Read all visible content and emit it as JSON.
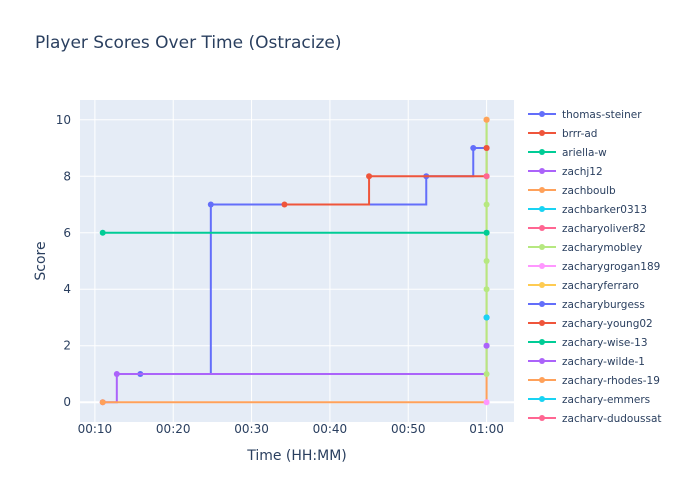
{
  "chart_data": {
    "type": "line",
    "line_shape": "step",
    "title": "Player Scores Over Time (Ostracize)",
    "xlabel": "Time (HH:MM)",
    "ylabel": "Score",
    "x_ticks": [
      "00:10",
      "00:20",
      "00:30",
      "00:40",
      "00:50",
      "01:00"
    ],
    "x_tick_minutes": [
      10,
      20,
      30,
      40,
      50,
      60
    ],
    "xlim_minutes": [
      8.1,
      63.5
    ],
    "y_ticks": [
      0,
      2,
      4,
      6,
      8,
      10
    ],
    "ylim": [
      -0.7,
      10.7
    ],
    "grid": true,
    "legend_position": "right",
    "series": [
      {
        "name": "thomas-steiner",
        "color": "#636efa",
        "x": [
          15.8,
          24.8,
          52.3,
          58.3,
          60
        ],
        "y": [
          1,
          7,
          8,
          9,
          9
        ]
      },
      {
        "name": "brrr-ad",
        "color": "#EF553B",
        "x": [
          34.2,
          45,
          60
        ],
        "y": [
          7,
          8,
          9
        ]
      },
      {
        "name": "ariella-w",
        "color": "#00cc96",
        "x": [
          11,
          60
        ],
        "y": [
          6,
          6
        ]
      },
      {
        "name": "zachj12",
        "color": "#ab63fa",
        "x": [
          11,
          12.8,
          60
        ],
        "y": [
          0,
          1,
          2
        ]
      },
      {
        "name": "zachboulb",
        "color": "#FFA15A",
        "x": [
          11,
          60
        ],
        "y": [
          0,
          10
        ]
      },
      {
        "name": "zachbarker0313",
        "color": "#19d3f3",
        "x": [
          60
        ],
        "y": [
          3
        ]
      },
      {
        "name": "zacharyoliver82",
        "color": "#FF6692",
        "x": [
          60
        ],
        "y": [
          8
        ]
      },
      {
        "name": "zacharymobley",
        "color": "#B6E880",
        "x": [
          60,
          60,
          60,
          60,
          60,
          60
        ],
        "y": [
          1,
          4,
          5,
          6,
          7,
          10
        ]
      },
      {
        "name": "zacharygrogan189",
        "color": "#FF97FF",
        "x": [
          60
        ],
        "y": [
          0
        ]
      },
      {
        "name": "zacharyferraro",
        "color": "#FECB52",
        "x": [
          60
        ],
        "y": [
          10
        ]
      },
      {
        "name": "zacharyburgess",
        "color": "#636efa",
        "x": [
          60
        ],
        "y": [
          3
        ]
      },
      {
        "name": "zachary-young02",
        "color": "#EF553B",
        "x": [
          60
        ],
        "y": [
          9
        ]
      },
      {
        "name": "zachary-wise-13",
        "color": "#00cc96",
        "x": [
          60
        ],
        "y": [
          6
        ]
      },
      {
        "name": "zachary-wilde-1",
        "color": "#ab63fa",
        "x": [
          60
        ],
        "y": [
          2
        ]
      },
      {
        "name": "zachary-rhodes-19",
        "color": "#FFA15A",
        "x": [
          60
        ],
        "y": [
          10
        ]
      },
      {
        "name": "zachary-emmers",
        "color": "#19d3f3",
        "x": [
          60
        ],
        "y": [
          3
        ]
      },
      {
        "name": "zachary-dudoussat",
        "color": "#FF6692",
        "x": [
          60
        ],
        "y": [
          8
        ]
      }
    ]
  }
}
